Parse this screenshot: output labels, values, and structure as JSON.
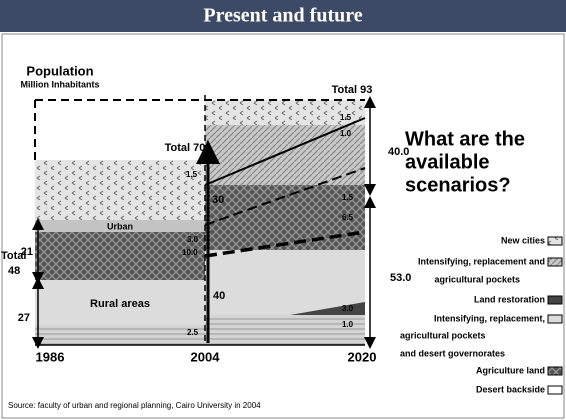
{
  "header": {
    "title": "Present and future"
  },
  "axis": {
    "title": "Population",
    "unit": "Million Inhabitants",
    "years": [
      "1986",
      "2004",
      "2020"
    ]
  },
  "totals": {
    "total_2020": "Total 93",
    "total_2004": "Total 70",
    "total_1986_word": "Total",
    "total_1986_value": "48"
  },
  "labels": {
    "urban": "Urban",
    "rural": "Rural areas",
    "v_1_5_top": "1.5",
    "v_1_0_top": "1.0",
    "v_40_0": "40.0",
    "v_30": "30",
    "v_1_5_mid": "1.5",
    "v_6_5": "6.5",
    "v_1_5_left": "1.5",
    "v_3_0_left": "3.0",
    "v_10_0": "10.0",
    "v_21": "21",
    "v_27": "27",
    "v_40": "40",
    "v_53_0": "53.0",
    "v_3_0_right": "3.0",
    "v_1_0_right": "1.0",
    "v_2_5": "2.5"
  },
  "question": [
    "What are the",
    "available",
    "scenarios?"
  ],
  "legend": [
    "New cities",
    "Intensifying, replacement and",
    "agricultural pockets",
    "Land restoration",
    "Intensifying, replacement,",
    "agricultural pockets",
    "and desert governorates",
    "Agriculture land",
    "Desert backside"
  ],
  "source": "Source: faculty of urban and regional planning, Cairo University   in 2004"
}
